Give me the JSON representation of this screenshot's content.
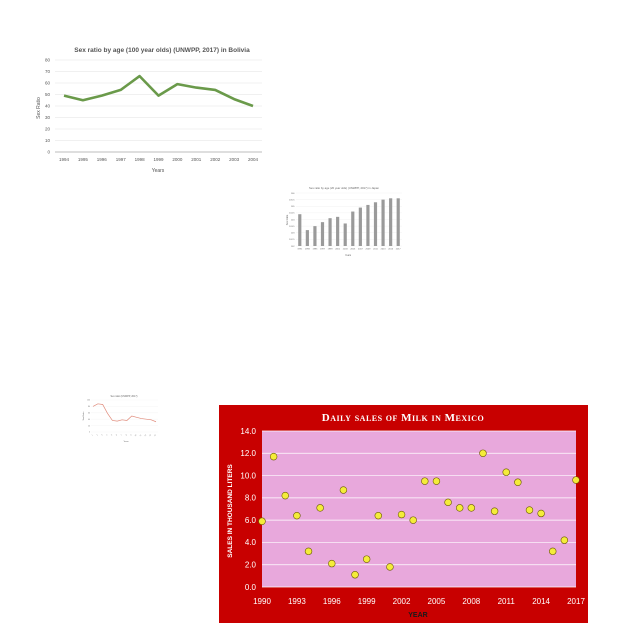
{
  "colors": {
    "bolivia_line": "#6a9a4a",
    "japan_bar": "#9a9a9a",
    "small_line": "#e08a7a",
    "mexico_frame": "#c80000",
    "mexico_plot_bg": "#e8a8dc",
    "mexico_point": "#f4ec3a"
  },
  "chart_data": [
    {
      "type": "line",
      "title": "Sex ratio by age (100 year olds) (UNWPP, 2017) in Bolivia",
      "xlabel": "Years",
      "ylabel": "Sex Ratio",
      "x": [
        "1994",
        "1995",
        "1996",
        "1997",
        "1998",
        "1999",
        "2000",
        "2001",
        "2002",
        "2003",
        "2004"
      ],
      "values": [
        49,
        45,
        49,
        54,
        66,
        49,
        59,
        56,
        54,
        46,
        40
      ],
      "yticks": [
        "0",
        "10",
        "20",
        "30",
        "40",
        "50",
        "60",
        "70",
        "80"
      ],
      "ylim": [
        0,
        80
      ],
      "grid": true
    },
    {
      "type": "bar",
      "title": "Sex ratio by age (20 year olds) (UNWPP, 2017) in Japan",
      "xlabel": "Years",
      "ylabel": "Sex Ratio",
      "categories": [
        "1991",
        "1993",
        "1995",
        "1997",
        "1999",
        "2001",
        "2003",
        "2005",
        "2007",
        "2009",
        "2011",
        "2013",
        "2015",
        "2017"
      ],
      "values": [
        104.4,
        103.2,
        103.5,
        103.8,
        104.1,
        104.2,
        103.7,
        104.6,
        104.9,
        105.1,
        105.3,
        105.5,
        105.6,
        105.6
      ],
      "yticks": [
        "102",
        "102.5",
        "103",
        "103.5",
        "104",
        "104.5",
        "105",
        "105.5",
        "106"
      ],
      "ylim": [
        102,
        106
      ],
      "grid": true
    },
    {
      "type": "line",
      "title": "Sex ratio (UNWPP, 2017)",
      "xlabel": "Years",
      "ylabel": "Sex Ratio",
      "x": [
        "1",
        "2",
        "3",
        "4",
        "5",
        "6",
        "7",
        "8",
        "9",
        "10",
        "11",
        "12",
        "13",
        "14"
      ],
      "values": [
        80,
        88,
        86,
        58,
        36,
        34,
        38,
        36,
        50,
        46,
        42,
        40,
        38,
        32
      ],
      "yticks": [
        "0",
        "20",
        "40",
        "60",
        "80",
        "100"
      ],
      "ylim": [
        0,
        100
      ],
      "grid": true
    },
    {
      "type": "scatter",
      "title": "Daily sales of Milk in Mexico",
      "xlabel": "Year",
      "ylabel": "Sales in thousand liters",
      "xticks": [
        "1990",
        "1993",
        "1996",
        "1999",
        "2002",
        "2005",
        "2008",
        "2011",
        "2014",
        "2017"
      ],
      "yticks": [
        "0.0",
        "2.0",
        "4.0",
        "6.0",
        "8.0",
        "10.0",
        "12.0",
        "14.0"
      ],
      "xlim": [
        1990,
        2017
      ],
      "ylim": [
        0,
        14
      ],
      "points": [
        {
          "x": 1990,
          "y": 5.9
        },
        {
          "x": 1991,
          "y": 11.7
        },
        {
          "x": 1992,
          "y": 8.2
        },
        {
          "x": 1993,
          "y": 6.4
        },
        {
          "x": 1994,
          "y": 3.2
        },
        {
          "x": 1995,
          "y": 7.1
        },
        {
          "x": 1996,
          "y": 2.1
        },
        {
          "x": 1997,
          "y": 8.7
        },
        {
          "x": 1998,
          "y": 1.1
        },
        {
          "x": 1999,
          "y": 2.5
        },
        {
          "x": 2000,
          "y": 6.4
        },
        {
          "x": 2001,
          "y": 1.8
        },
        {
          "x": 2002,
          "y": 6.5
        },
        {
          "x": 2003,
          "y": 6.0
        },
        {
          "x": 2004,
          "y": 9.5
        },
        {
          "x": 2005,
          "y": 9.5
        },
        {
          "x": 2006,
          "y": 7.6
        },
        {
          "x": 2007,
          "y": 7.1
        },
        {
          "x": 2008,
          "y": 7.1
        },
        {
          "x": 2009,
          "y": 12.0
        },
        {
          "x": 2010,
          "y": 6.8
        },
        {
          "x": 2011,
          "y": 10.3
        },
        {
          "x": 2012,
          "y": 9.4
        },
        {
          "x": 2013,
          "y": 6.9
        },
        {
          "x": 2014,
          "y": 6.6
        },
        {
          "x": 2015,
          "y": 3.2
        },
        {
          "x": 2016,
          "y": 4.2
        },
        {
          "x": 2017,
          "y": 9.6
        }
      ],
      "grid": true
    }
  ]
}
